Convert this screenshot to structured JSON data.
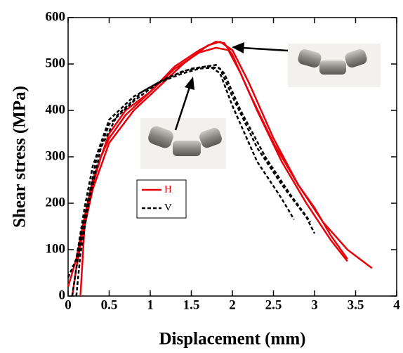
{
  "chart_data": {
    "type": "line",
    "xlabel": "Displacement (mm)",
    "ylabel": "Shear stress (MPa)",
    "xlim": [
      0,
      4
    ],
    "ylim": [
      0,
      600
    ],
    "xticks": [
      0,
      0.5,
      1,
      1.5,
      2,
      2.5,
      3,
      3.5,
      4
    ],
    "yticks": [
      0,
      100,
      200,
      300,
      400,
      500,
      600
    ],
    "series": [
      {
        "name": "H",
        "color": "#e8000b",
        "dash": "solid",
        "lines": [
          {
            "x": [
              0.05,
              0.1,
              0.2,
              0.3,
              0.4,
              0.5,
              0.7,
              1.0,
              1.3,
              1.6,
              1.8,
              1.9,
              2.0,
              2.2,
              2.5,
              2.8,
              3.1,
              3.4,
              3.7
            ],
            "values": [
              0,
              60,
              160,
              240,
              300,
              340,
              390,
              440,
              495,
              530,
              548,
              545,
              520,
              440,
              330,
              240,
              160,
              100,
              60
            ]
          },
          {
            "x": [
              0.0,
              0.1,
              0.2,
              0.3,
              0.5,
              0.7,
              1.0,
              1.3,
              1.6,
              1.8,
              1.95,
              2.1,
              2.3,
              2.6,
              2.9,
              3.2,
              3.4
            ],
            "values": [
              20,
              80,
              170,
              250,
              350,
              400,
              440,
              490,
              525,
              535,
              530,
              480,
              400,
              290,
              200,
              120,
              75
            ]
          },
          {
            "x": [
              0.15,
              0.2,
              0.3,
              0.5,
              0.8,
              1.1,
              1.4,
              1.7,
              1.85,
              2.0,
              2.2,
              2.5,
              2.8,
              3.0,
              3.2,
              3.4
            ],
            "values": [
              0,
              150,
              230,
              330,
              400,
              450,
              500,
              540,
              548,
              530,
              460,
              340,
              240,
              190,
              130,
              80
            ]
          }
        ]
      },
      {
        "name": "V",
        "color": "#000000",
        "dash": "dashed",
        "lines": [
          {
            "x": [
              0.0,
              0.1,
              0.2,
              0.3,
              0.5,
              0.8,
              1.1,
              1.4,
              1.6,
              1.75,
              1.85,
              2.0,
              2.3,
              2.6,
              2.75
            ],
            "values": [
              40,
              80,
              190,
              280,
              380,
              430,
              460,
              480,
              490,
              492,
              480,
              410,
              290,
              210,
              165
            ]
          },
          {
            "x": [
              0.05,
              0.1,
              0.2,
              0.35,
              0.5,
              0.8,
              1.1,
              1.4,
              1.7,
              1.85,
              2.0,
              2.3,
              2.6,
              2.9,
              3.0
            ],
            "values": [
              0,
              60,
              170,
              300,
              370,
              420,
              460,
              485,
              495,
              490,
              430,
              320,
              240,
              170,
              135
            ]
          },
          {
            "x": [
              0.1,
              0.15,
              0.25,
              0.4,
              0.6,
              0.9,
              1.2,
              1.5,
              1.8,
              1.9,
              2.1,
              2.4,
              2.7,
              2.95
            ],
            "values": [
              0,
              90,
              200,
              320,
              390,
              440,
              470,
              490,
              498,
              480,
              400,
              300,
              220,
              160
            ]
          }
        ]
      }
    ]
  }
}
